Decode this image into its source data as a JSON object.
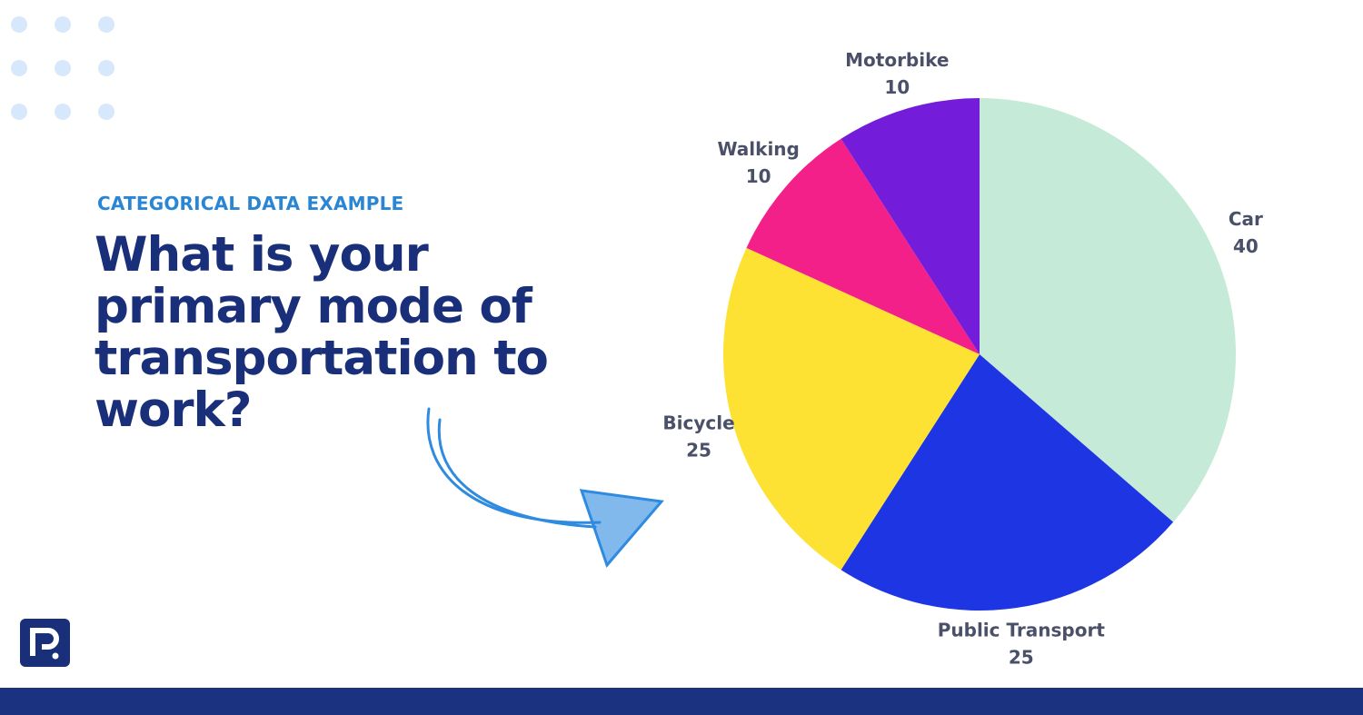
{
  "chart_data": {
    "type": "pie",
    "kicker": "CATEGORICAL DATA EXAMPLE",
    "title": "What is your primary mode of transportation to work?",
    "categories": [
      "Car",
      "Public Transport",
      "Bicycle",
      "Walking",
      "Motorbike"
    ],
    "values": [
      40,
      25,
      25,
      10,
      10
    ],
    "colors": [
      "#c5ead8",
      "#1d35e3",
      "#fde234",
      "#f4208a",
      "#731cd9"
    ]
  }
}
